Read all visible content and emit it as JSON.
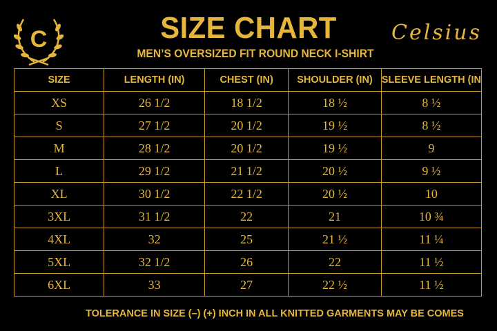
{
  "colors": {
    "background": "#000000",
    "accent": "#e6b63c",
    "border": "#c99a2a"
  },
  "logo": {
    "letter": "C",
    "icon": "laurel-wreath-icon"
  },
  "title": "SIZE CHART",
  "subtitle": "MEN’S OVERSIZED FIT ROUND NECK I-SHIRT",
  "brand": "Celsius",
  "table": {
    "headers": [
      "SIZE",
      "LENGTH (IN)",
      "CHEST (IN)",
      "SHOULDER (IN)",
      "SLEEVE LENGTH (IN"
    ],
    "rows": [
      [
        "XS",
        "26 1/2",
        "18 1/2",
        "18 ½",
        "8 ½"
      ],
      [
        "S",
        "27 1/2",
        "20 1/2",
        "19 ½",
        "8 ½"
      ],
      [
        "M",
        "28 1/2",
        "20 1/2",
        "19 ½",
        "9"
      ],
      [
        "L",
        "29 1/2",
        "21 1/2",
        "20 ½",
        "9 ½"
      ],
      [
        "XL",
        "30 1/2",
        "22 1/2",
        "20 ½",
        "10"
      ],
      [
        "3XL",
        "31 1/2",
        "22",
        "21",
        "10 ¾"
      ],
      [
        "4XL",
        "32",
        "25",
        "21 ½",
        "11 ¼"
      ],
      [
        "5XL",
        "32 1/2",
        "26",
        "22",
        "11 ½"
      ],
      [
        "6XL",
        "33",
        "27",
        "22 ½",
        "11 ½"
      ]
    ]
  },
  "footer": "TOLERANCE IN SIZE (–) (+) INCH IN ALL KNITTED GARMENTS MAY BE COMES"
}
